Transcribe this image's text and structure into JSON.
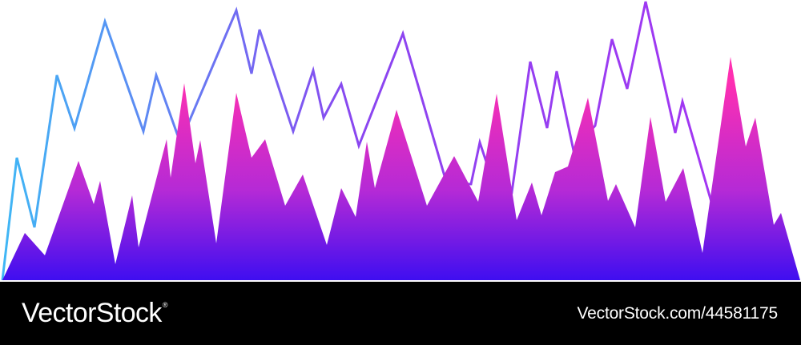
{
  "chart_data": {
    "type": "area",
    "title": "",
    "xlabel": "",
    "ylabel": "",
    "xlim": [
      0,
      1000
    ],
    "ylim": [
      0,
      350
    ],
    "grid": false,
    "legend": "none",
    "series": [
      {
        "kind": "line",
        "x": [
          3,
          21,
          43,
          71,
          93,
          131,
          179,
          195,
          225,
          295,
          314,
          324,
          366,
          391,
          404,
          426,
          448,
          503,
          555,
          565,
          588,
          599,
          613,
          639,
          662,
          683,
          695,
          716,
          743,
          764,
          783,
          806,
          843,
          852,
          888
        ],
        "y": [
          0,
          153,
          66,
          256,
          190,
          323,
          186,
          256,
          172,
          337,
          258,
          313,
          186,
          262,
          203,
          245,
          168,
          308,
          130,
          121,
          120,
          172,
          130,
          110,
          273,
          190,
          261,
          162,
          193,
          301,
          239,
          348,
          184,
          223,
          98
        ]
      },
      {
        "kind": "area",
        "x": [
          3,
          31,
          56,
          98,
          117,
          125,
          144,
          165,
          173,
          208,
          213,
          230,
          244,
          250,
          270,
          295,
          314,
          331,
          356,
          378,
          408,
          426,
          444,
          458,
          468,
          495,
          533,
          567,
          597,
          620,
          645,
          664,
          676,
          693,
          709,
          716,
          734,
          759,
          769,
          793,
          812,
          831,
          853,
          877,
          912,
          931,
          943,
          966,
          975,
          999
        ],
        "y": [
          0,
          59,
          31,
          149,
          95,
          124,
          20,
          106,
          41,
          176,
          128,
          246,
          146,
          175,
          46,
          234,
          153,
          176,
          93,
          132,
          44,
          115,
          79,
          173,
          115,
          213,
          93,
          155,
          98,
          233,
          75,
          122,
          81,
          135,
          142,
          165,
          228,
          99,
          120,
          66,
          204,
          98,
          140,
          34,
          279,
          167,
          203,
          69,
          84,
          0
        ]
      }
    ]
  },
  "colors": {
    "line_start": "#3fb7f5",
    "line_mid": "#8a46f0",
    "line_end": "#a236f2",
    "area_top": "#ff2fb1",
    "area_mid": "#b52ad6",
    "area_bottom": "#3f0ef0",
    "footer_bg": "#000000",
    "footer_text": "#ffffff"
  },
  "footer": {
    "brand": "VectorStock",
    "brand_mark": "®",
    "stock_id": "VectorStock.com/44581175"
  }
}
